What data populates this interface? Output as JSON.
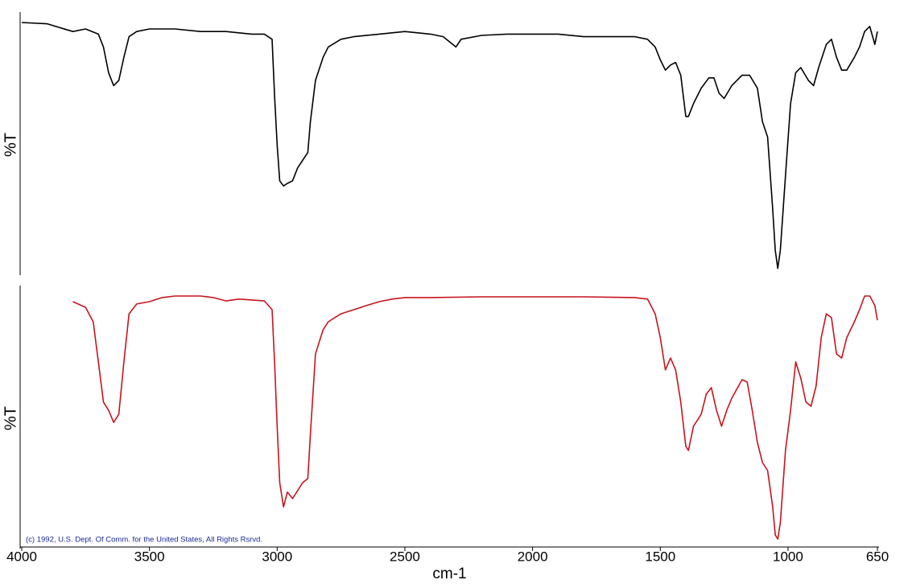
{
  "chart_data": [
    {
      "type": "line",
      "ylabel": "%T",
      "xlim": [
        4000,
        650
      ],
      "ylim": [
        0,
        100
      ],
      "color": "#000000",
      "x": [
        4000,
        3900,
        3800,
        3750,
        3700,
        3680,
        3660,
        3640,
        3620,
        3600,
        3580,
        3550,
        3500,
        3400,
        3300,
        3200,
        3100,
        3050,
        3020,
        3010,
        3000,
        2990,
        2975,
        2960,
        2940,
        2920,
        2900,
        2880,
        2870,
        2850,
        2820,
        2800,
        2750,
        2700,
        2600,
        2500,
        2400,
        2350,
        2300,
        2280,
        2200,
        2100,
        2000,
        1900,
        1800,
        1700,
        1600,
        1550,
        1520,
        1500,
        1480,
        1460,
        1440,
        1420,
        1400,
        1390,
        1370,
        1340,
        1310,
        1290,
        1270,
        1250,
        1220,
        1180,
        1150,
        1120,
        1100,
        1080,
        1060,
        1050,
        1040,
        1030,
        1010,
        990,
        970,
        950,
        920,
        900,
        880,
        850,
        830,
        810,
        790,
        770,
        740,
        720,
        700,
        680,
        660,
        650
      ],
      "values": [
        97.5,
        97,
        94,
        95,
        93,
        88,
        78,
        73,
        75,
        84,
        92,
        94,
        95,
        95,
        94,
        94,
        93,
        93,
        91,
        69,
        50,
        36,
        34,
        35,
        36,
        41,
        44,
        47,
        59,
        75,
        84,
        88,
        91,
        92,
        93,
        94,
        93,
        92,
        88,
        91,
        92.5,
        93,
        93,
        93,
        92,
        92,
        92,
        91,
        88,
        83,
        79,
        81,
        82,
        77,
        61,
        61,
        66,
        72,
        76,
        76,
        70,
        68,
        73,
        77,
        77,
        72,
        59,
        53,
        25,
        9,
        2,
        9,
        38,
        66,
        78,
        80,
        75,
        73,
        80,
        89,
        91,
        84,
        79,
        79,
        84,
        88,
        94,
        96,
        89,
        94
      ]
    },
    {
      "type": "line",
      "ylabel": "%T",
      "xlabel": "cm-1",
      "annotation": "(c) 1992, U.S. Dept. Of Comm. for the United States, All Rights Rsrvd.",
      "xlim": [
        4000,
        650
      ],
      "ylim": [
        0,
        100
      ],
      "xticks": [
        4000,
        3500,
        3000,
        2500,
        2000,
        1500,
        1000,
        650
      ],
      "color": "#c8141e",
      "x": [
        3800,
        3750,
        3720,
        3700,
        3680,
        3660,
        3640,
        3620,
        3600,
        3580,
        3550,
        3500,
        3450,
        3400,
        3300,
        3250,
        3200,
        3150,
        3050,
        3020,
        3010,
        3000,
        2990,
        2975,
        2960,
        2940,
        2920,
        2900,
        2880,
        2870,
        2850,
        2820,
        2800,
        2750,
        2700,
        2650,
        2600,
        2550,
        2500,
        2400,
        2200,
        2000,
        1800,
        1600,
        1550,
        1520,
        1500,
        1480,
        1460,
        1440,
        1420,
        1400,
        1390,
        1370,
        1340,
        1320,
        1300,
        1280,
        1260,
        1240,
        1220,
        1180,
        1160,
        1140,
        1120,
        1100,
        1080,
        1060,
        1050,
        1040,
        1030,
        1010,
        990,
        970,
        950,
        930,
        910,
        890,
        870,
        850,
        830,
        810,
        790,
        770,
        740,
        720,
        700,
        680,
        660,
        650
      ],
      "values": [
        95.3,
        93.1,
        87.5,
        71.9,
        56.3,
        53.1,
        48.4,
        51.6,
        71.9,
        90.6,
        94.4,
        95.3,
        96.9,
        97.5,
        97.5,
        96.9,
        95.6,
        96.3,
        95.6,
        92.2,
        71.9,
        46.9,
        25,
        15.6,
        21.3,
        18.8,
        21.9,
        25,
        26.6,
        43.8,
        75,
        84.4,
        87.5,
        90.6,
        92.2,
        93.8,
        95.3,
        96.3,
        96.9,
        96.9,
        97.2,
        97.2,
        97.2,
        96.9,
        96.3,
        90.6,
        81.3,
        68.8,
        73.4,
        68.8,
        56.3,
        39.1,
        37.5,
        46.9,
        51.6,
        59.4,
        61.9,
        53.1,
        46.9,
        53.1,
        57.8,
        65,
        64.1,
        53.1,
        40.6,
        32.8,
        29.7,
        15.6,
        4.7,
        3.1,
        9.4,
        37.5,
        53.1,
        71.9,
        65.6,
        56.3,
        54.7,
        62.5,
        81.3,
        90.6,
        89.1,
        75,
        73.4,
        81.3,
        87.5,
        92.2,
        97.5,
        97.5,
        93.8,
        88.1
      ]
    }
  ]
}
